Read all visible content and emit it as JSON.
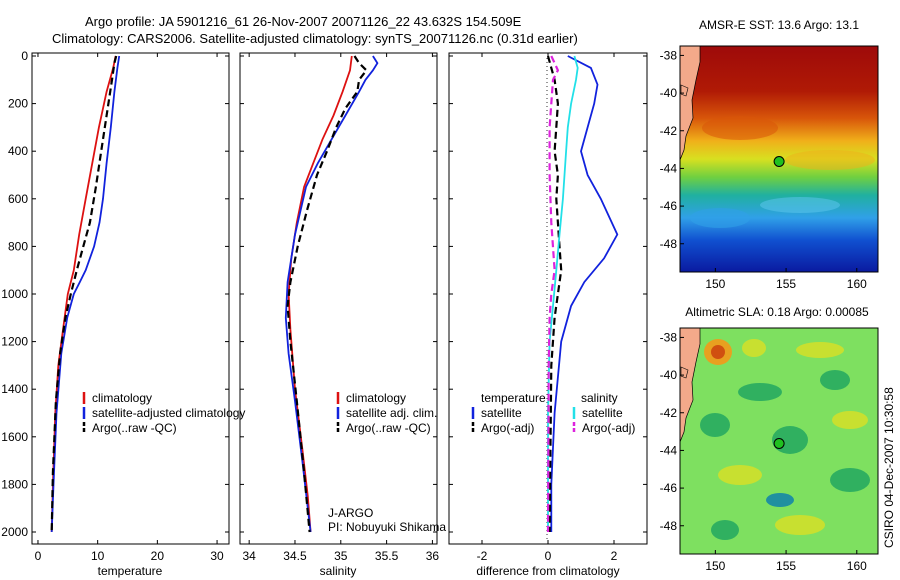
{
  "title_line1": "Argo profile: JA 5901216_61 26-Nov-2007 20071126_22 43.632S 154.509E",
  "title_line2": "Climatology: CARS2006. Satellite-adjusted climatology: synTS_20071126.nc (0.31d earlier)",
  "footer_credit": "CSIRO 04-Dec-2007 10:30:58",
  "colors": {
    "climatology": "#dd1111",
    "satellite": "#1122dd",
    "argo": "#000000",
    "cyan": "#22e0e8",
    "magenta": "#dd22dd"
  },
  "chart_data": [
    {
      "type": "line",
      "xlabel": "temperature",
      "ylabel": "",
      "xlim": [
        -1,
        32
      ],
      "ylim": [
        2050,
        0
      ],
      "xticks": [
        0,
        10,
        20,
        30
      ],
      "yticks": [
        0,
        200,
        400,
        600,
        800,
        1000,
        1200,
        1400,
        1600,
        1800,
        2000
      ],
      "legend": [
        "climatology",
        "satellite-adjusted climatology",
        "Argo(..raw -QC)"
      ],
      "legend_position": "lower-left",
      "series": [
        {
          "name": "climatology",
          "color": "#dd1111",
          "dash": "solid",
          "x": [
            13.0,
            12.6,
            11.5,
            10.2,
            9.1,
            8.0,
            6.9,
            6.0,
            5.0,
            4.2,
            3.4,
            2.9,
            2.5,
            2.3
          ],
          "y": [
            0,
            50,
            150,
            300,
            450,
            600,
            750,
            900,
            1000,
            1150,
            1300,
            1500,
            1800,
            2000
          ]
        },
        {
          "name": "satellite-adjusted climatology",
          "color": "#1122dd",
          "dash": "solid",
          "x": [
            13.6,
            13.3,
            12.8,
            12.2,
            11.5,
            10.9,
            10.3,
            9.4,
            8.0,
            7.0,
            6.0,
            4.9,
            3.9,
            3.1,
            2.6,
            2.3
          ],
          "y": [
            0,
            50,
            150,
            300,
            450,
            600,
            700,
            800,
            900,
            950,
            1000,
            1100,
            1250,
            1500,
            1800,
            2000
          ]
        },
        {
          "name": "Argo(..raw -QC)",
          "color": "#000000",
          "dash": "dashed",
          "x": [
            13.1,
            12.8,
            12.4,
            11.5,
            10.6,
            9.7,
            8.7,
            7.6,
            6.5,
            5.5,
            4.6,
            3.7,
            3.0,
            2.5,
            2.3
          ],
          "y": [
            0,
            30,
            100,
            250,
            400,
            550,
            700,
            800,
            900,
            1000,
            1100,
            1250,
            1450,
            1750,
            2000
          ]
        }
      ]
    },
    {
      "type": "line",
      "xlabel": "salinity",
      "ylabel": "",
      "xlim": [
        33.9,
        36.05
      ],
      "ylim": [
        2050,
        0
      ],
      "xticks": [
        34,
        34.5,
        35,
        35.5,
        36
      ],
      "xticklabels": [
        "34",
        "34.5",
        "35",
        "35.5",
        "36"
      ],
      "legend": [
        "climatology",
        "satellite adj. clim.",
        "Argo(..raw -QC)"
      ],
      "legend_position": "lower-center",
      "annotation_lines": [
        "J-ARGO",
        "PI: Nobuyuki Shikama"
      ],
      "series": [
        {
          "name": "climatology",
          "color": "#dd1111",
          "dash": "solid",
          "x": [
            35.12,
            35.1,
            35.02,
            34.92,
            34.8,
            34.7,
            34.6,
            34.52,
            34.46,
            34.43,
            34.45,
            34.5,
            34.58,
            34.64,
            34.67
          ],
          "y": [
            0,
            60,
            150,
            250,
            350,
            450,
            550,
            700,
            850,
            1000,
            1150,
            1400,
            1650,
            1850,
            2000
          ]
        },
        {
          "name": "satellite adj. clim.",
          "color": "#1122dd",
          "dash": "solid",
          "x": [
            35.35,
            35.4,
            35.35,
            35.27,
            35.2,
            35.05,
            34.9,
            34.75,
            34.62,
            34.5,
            34.42,
            34.4,
            34.43,
            34.5,
            34.58,
            34.64,
            34.67
          ],
          "y": [
            0,
            30,
            60,
            100,
            150,
            250,
            350,
            450,
            550,
            750,
            950,
            1100,
            1250,
            1450,
            1700,
            1900,
            2000
          ]
        },
        {
          "name": "Argo(..raw -QC)",
          "color": "#000000",
          "dash": "dashed",
          "x": [
            35.15,
            35.2,
            35.28,
            35.2,
            35.18,
            35.05,
            34.95,
            34.85,
            34.74,
            34.63,
            34.53,
            34.45,
            34.42,
            34.45,
            34.52,
            34.6,
            34.66
          ],
          "y": [
            0,
            30,
            60,
            100,
            150,
            220,
            300,
            400,
            500,
            650,
            800,
            950,
            1050,
            1200,
            1450,
            1750,
            2000
          ]
        }
      ]
    },
    {
      "type": "line",
      "xlabel": "difference from climatology",
      "ylabel": "",
      "xlim": [
        -3,
        3
      ],
      "ylim": [
        2050,
        0
      ],
      "xticks": [
        -2,
        0,
        2
      ],
      "xticklabels": [
        "-2",
        "0",
        "2"
      ],
      "legend_headers": [
        "temperature",
        "salinity"
      ],
      "legend": [
        "satellite",
        "Argo(-adj)",
        "satellite",
        "Argo(-adj)"
      ],
      "legend_position": "lower-center",
      "series": [
        {
          "name": "temperature satellite",
          "color": "#1122dd",
          "dash": "solid",
          "x": [
            0.6,
            1.3,
            1.5,
            1.4,
            1.2,
            1.0,
            1.2,
            1.6,
            2.1,
            1.7,
            1.1,
            0.7,
            0.4,
            0.2,
            0.1,
            0.1
          ],
          "y": [
            0,
            50,
            120,
            200,
            300,
            400,
            500,
            600,
            750,
            850,
            950,
            1050,
            1200,
            1500,
            1800,
            2000
          ]
        },
        {
          "name": "temperature Argo(-adj)",
          "color": "#000000",
          "dash": "dashed",
          "x": [
            0.0,
            0.1,
            0.2,
            0.3,
            0.25,
            0.2,
            0.3,
            0.25,
            0.3,
            0.35,
            0.4,
            0.3,
            0.2,
            0.1,
            0.05
          ],
          "y": [
            0,
            50,
            100,
            200,
            300,
            400,
            500,
            600,
            700,
            800,
            900,
            1000,
            1100,
            1300,
            2000
          ]
        },
        {
          "name": "salinity satellite",
          "color": "#22e0e8",
          "dash": "solid",
          "x": [
            0.8,
            0.9,
            0.85,
            0.7,
            0.6,
            0.55,
            0.5,
            0.45,
            0.35,
            0.25,
            0.15,
            0.05,
            0.0,
            0.0
          ],
          "y": [
            0,
            50,
            100,
            200,
            300,
            400,
            500,
            600,
            750,
            900,
            1050,
            1200,
            1500,
            2000
          ]
        },
        {
          "name": "salinity Argo(-adj)",
          "color": "#dd22dd",
          "dash": "dashed",
          "x": [
            0.1,
            0.2,
            0.3,
            0.15,
            0.1,
            0.05,
            0.05,
            0.05,
            0.1,
            0.2,
            0.1,
            0.05,
            0.02,
            0.0
          ],
          "y": [
            0,
            30,
            60,
            100,
            200,
            300,
            400,
            500,
            700,
            900,
            1000,
            1100,
            1300,
            2000
          ]
        }
      ]
    },
    {
      "type": "heatmap",
      "title": "AMSR-E SST: 13.6 Argo: 13.1",
      "xticks": [
        150,
        155,
        160
      ],
      "yticks": [
        -38,
        -40,
        -42,
        -44,
        -46,
        -48
      ],
      "xlim": [
        147.5,
        161.5
      ],
      "ylim": [
        -49.5,
        -37.5
      ],
      "marker": {
        "lon": 154.509,
        "lat": -43.632
      }
    },
    {
      "type": "heatmap",
      "title": "Altimetric SLA: 0.18 Argo: 0.00085",
      "xticks": [
        150,
        155,
        160
      ],
      "yticks": [
        -38,
        -40,
        -42,
        -44,
        -46,
        -48
      ],
      "xlim": [
        147.5,
        161.5
      ],
      "ylim": [
        -49.5,
        -37.5
      ],
      "marker": {
        "lon": 154.509,
        "lat": -43.632
      }
    }
  ]
}
